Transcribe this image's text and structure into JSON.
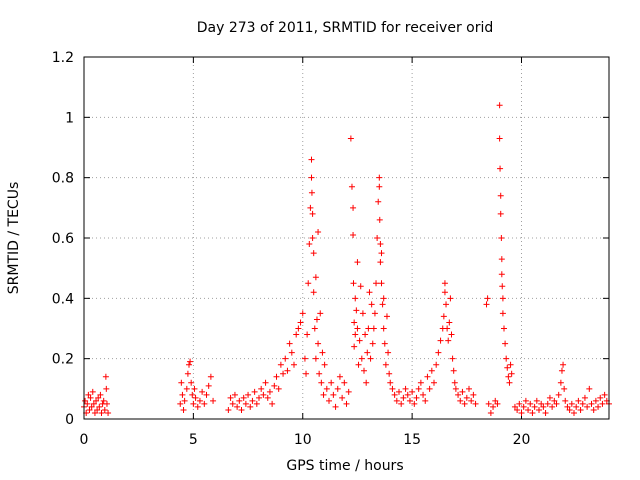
{
  "chart_data": {
    "type": "scatter",
    "title": "Day 273 of 2011, SRMTID for receiver orid",
    "xlabel": "GPS time / hours",
    "ylabel": "SRMTID / TECUs",
    "xlim": [
      0,
      24
    ],
    "ylim": [
      0,
      1.2
    ],
    "xticks": [
      0,
      5,
      10,
      15,
      20
    ],
    "xtick_labels": [
      "0",
      "5",
      "10",
      "15",
      "20"
    ],
    "yticks": [
      0,
      0.2,
      0.4,
      0.6,
      0.8,
      1.0,
      1.2
    ],
    "ytick_labels": [
      "0",
      "0.2",
      "0.4",
      "0.6",
      "0.8",
      "1",
      "1.2"
    ],
    "grid": true,
    "marker": "+",
    "color": "#ff0000",
    "series": [
      {
        "name": "SRMTID",
        "x": [
          0.0,
          0.05,
          0.1,
          0.15,
          0.2,
          0.25,
          0.3,
          0.35,
          0.4,
          0.45,
          0.5,
          0.55,
          0.6,
          0.65,
          0.7,
          0.75,
          0.8,
          0.85,
          0.9,
          0.95,
          1.0,
          1.02,
          1.05,
          1.1,
          4.4,
          4.45,
          4.5,
          4.55,
          4.6,
          4.7,
          4.75,
          4.8,
          4.85,
          4.9,
          4.95,
          5.0,
          5.05,
          5.1,
          5.2,
          5.3,
          5.4,
          5.5,
          5.6,
          5.7,
          5.8,
          5.9,
          6.6,
          6.7,
          6.8,
          6.9,
          7.0,
          7.1,
          7.2,
          7.3,
          7.4,
          7.5,
          7.6,
          7.7,
          7.8,
          7.9,
          8.0,
          8.1,
          8.2,
          8.3,
          8.4,
          8.5,
          8.6,
          8.7,
          8.8,
          8.9,
          9.0,
          9.1,
          9.2,
          9.3,
          9.4,
          9.5,
          9.6,
          9.7,
          9.8,
          9.9,
          10.0,
          10.1,
          10.15,
          10.2,
          10.25,
          10.3,
          10.35,
          10.4,
          10.4,
          10.42,
          10.45,
          10.45,
          10.5,
          10.5,
          10.55,
          10.6,
          10.6,
          10.65,
          10.7,
          10.7,
          10.75,
          10.8,
          10.85,
          10.9,
          10.95,
          11.0,
          11.1,
          11.2,
          11.3,
          11.4,
          11.5,
          11.6,
          11.7,
          11.8,
          11.9,
          12.0,
          12.1,
          12.2,
          12.25,
          12.3,
          12.3,
          12.32,
          12.35,
          12.35,
          12.4,
          12.4,
          12.45,
          12.5,
          12.5,
          12.55,
          12.6,
          12.65,
          12.7,
          12.75,
          12.8,
          12.85,
          12.9,
          12.95,
          13.0,
          13.05,
          13.1,
          13.15,
          13.2,
          13.25,
          13.3,
          13.35,
          13.4,
          13.45,
          13.5,
          13.5,
          13.52,
          13.55,
          13.55,
          13.6,
          13.6,
          13.65,
          13.7,
          13.7,
          13.75,
          13.8,
          13.85,
          13.9,
          13.95,
          14.0,
          14.1,
          14.2,
          14.3,
          14.4,
          14.5,
          14.6,
          14.7,
          14.8,
          14.9,
          15.0,
          15.1,
          15.2,
          15.3,
          15.4,
          15.5,
          15.6,
          15.7,
          15.8,
          15.9,
          16.0,
          16.1,
          16.2,
          16.3,
          16.4,
          16.45,
          16.5,
          16.5,
          16.55,
          16.6,
          16.65,
          16.7,
          16.75,
          16.8,
          16.85,
          16.9,
          16.95,
          17.0,
          17.1,
          17.2,
          17.3,
          17.4,
          17.5,
          17.6,
          17.7,
          17.8,
          17.9,
          18.4,
          18.45,
          18.5,
          18.6,
          18.7,
          18.8,
          18.9,
          19.0,
          19.0,
          19.02,
          19.05,
          19.05,
          19.08,
          19.1,
          19.1,
          19.12,
          19.15,
          19.15,
          19.2,
          19.25,
          19.3,
          19.35,
          19.4,
          19.45,
          19.5,
          19.55,
          19.7,
          19.8,
          19.9,
          20.0,
          20.1,
          20.2,
          20.3,
          20.4,
          20.5,
          20.6,
          20.7,
          20.8,
          20.9,
          21.0,
          21.1,
          21.2,
          21.3,
          21.4,
          21.5,
          21.6,
          21.7,
          21.8,
          21.85,
          21.9,
          21.95,
          22.0,
          22.1,
          22.2,
          22.3,
          22.4,
          22.5,
          22.6,
          22.7,
          22.8,
          22.9,
          23.0,
          23.1,
          23.2,
          23.3,
          23.4,
          23.5,
          23.6,
          23.7,
          23.8,
          23.9,
          24.0
        ],
        "y": [
          0.04,
          0.06,
          0.02,
          0.05,
          0.08,
          0.03,
          0.07,
          0.04,
          0.09,
          0.05,
          0.02,
          0.06,
          0.03,
          0.07,
          0.04,
          0.08,
          0.02,
          0.05,
          0.06,
          0.03,
          0.14,
          0.1,
          0.05,
          0.02,
          0.05,
          0.12,
          0.08,
          0.03,
          0.06,
          0.1,
          0.15,
          0.18,
          0.19,
          0.12,
          0.08,
          0.05,
          0.1,
          0.07,
          0.04,
          0.06,
          0.09,
          0.05,
          0.08,
          0.11,
          0.14,
          0.06,
          0.03,
          0.07,
          0.05,
          0.08,
          0.04,
          0.06,
          0.03,
          0.07,
          0.05,
          0.08,
          0.04,
          0.06,
          0.09,
          0.05,
          0.07,
          0.1,
          0.08,
          0.12,
          0.07,
          0.09,
          0.05,
          0.11,
          0.14,
          0.1,
          0.18,
          0.15,
          0.2,
          0.16,
          0.25,
          0.22,
          0.18,
          0.28,
          0.3,
          0.32,
          0.35,
          0.2,
          0.15,
          0.28,
          0.45,
          0.58,
          0.7,
          0.86,
          0.8,
          0.75,
          0.6,
          0.68,
          0.42,
          0.55,
          0.3,
          0.47,
          0.2,
          0.33,
          0.62,
          0.25,
          0.15,
          0.35,
          0.12,
          0.22,
          0.08,
          0.18,
          0.1,
          0.06,
          0.12,
          0.08,
          0.04,
          0.1,
          0.14,
          0.07,
          0.12,
          0.05,
          0.09,
          0.93,
          0.77,
          0.7,
          0.61,
          0.45,
          0.32,
          0.24,
          0.4,
          0.28,
          0.36,
          0.52,
          0.3,
          0.18,
          0.26,
          0.44,
          0.2,
          0.35,
          0.16,
          0.28,
          0.12,
          0.22,
          0.3,
          0.42,
          0.2,
          0.38,
          0.25,
          0.3,
          0.35,
          0.45,
          0.6,
          0.72,
          0.8,
          0.77,
          0.66,
          0.58,
          0.52,
          0.45,
          0.55,
          0.38,
          0.3,
          0.4,
          0.25,
          0.18,
          0.34,
          0.22,
          0.15,
          0.12,
          0.1,
          0.08,
          0.06,
          0.09,
          0.05,
          0.07,
          0.1,
          0.08,
          0.06,
          0.09,
          0.05,
          0.07,
          0.1,
          0.12,
          0.08,
          0.06,
          0.14,
          0.1,
          0.16,
          0.12,
          0.18,
          0.22,
          0.26,
          0.3,
          0.34,
          0.45,
          0.42,
          0.38,
          0.3,
          0.26,
          0.32,
          0.4,
          0.28,
          0.2,
          0.16,
          0.12,
          0.1,
          0.08,
          0.06,
          0.09,
          0.05,
          0.07,
          0.1,
          0.06,
          0.08,
          0.05,
          0.38,
          0.4,
          0.05,
          0.02,
          0.04,
          0.06,
          0.05,
          1.04,
          0.93,
          0.83,
          0.74,
          0.68,
          0.6,
          0.53,
          0.48,
          0.44,
          0.4,
          0.35,
          0.3,
          0.25,
          0.2,
          0.17,
          0.14,
          0.12,
          0.18,
          0.15,
          0.04,
          0.03,
          0.05,
          0.02,
          0.04,
          0.06,
          0.03,
          0.05,
          0.02,
          0.04,
          0.06,
          0.03,
          0.05,
          0.04,
          0.02,
          0.05,
          0.07,
          0.04,
          0.06,
          0.05,
          0.08,
          0.12,
          0.16,
          0.18,
          0.1,
          0.06,
          0.04,
          0.03,
          0.05,
          0.02,
          0.04,
          0.06,
          0.03,
          0.05,
          0.07,
          0.04,
          0.1,
          0.05,
          0.03,
          0.06,
          0.04,
          0.07,
          0.05,
          0.08,
          0.06,
          0.05
        ]
      }
    ]
  }
}
